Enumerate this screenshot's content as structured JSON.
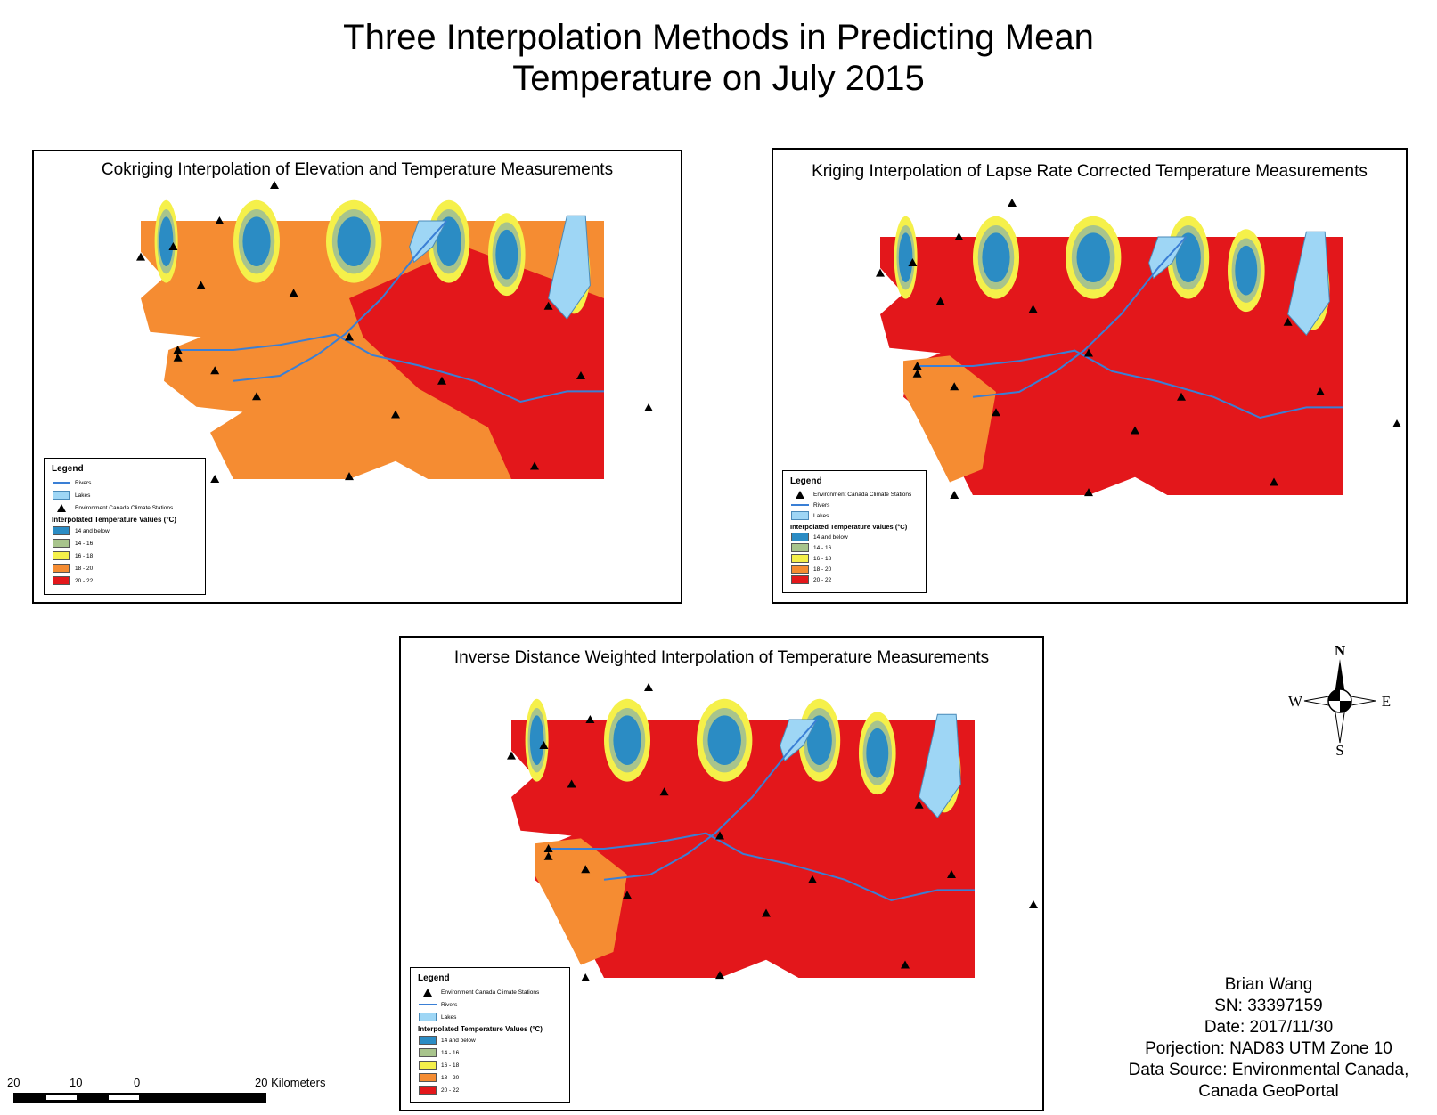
{
  "title": {
    "line1": "Three Interpolation Methods in Predicting Mean",
    "line2": "Temperature on July 2015"
  },
  "colors": {
    "below14": "#2b8cc4",
    "c14_16": "#a8c48c",
    "c16_18": "#f5f04a",
    "c18_20": "#f58c32",
    "c20_22": "#e3171b",
    "river": "#3a7fd5",
    "lake": "#9ed6f5"
  },
  "panels": [
    {
      "title": "Cokriging Interpolation of Elevation and Temperature Measurements",
      "dominant": "c18_20",
      "legend": {
        "title": "Legend",
        "rivers": "Rivers",
        "lakes": "Lakes",
        "stations": "Environment Canada Climate Stations",
        "subtitle": "Interpolated Temperature Values (°C)",
        "classes": [
          "14 and below",
          "14 - 16",
          "16 - 18",
          "18 - 20",
          "20 - 22"
        ]
      }
    },
    {
      "title": "Kriging Interpolation of Lapse Rate Corrected Temperature Measurements",
      "dominant": "c20_22",
      "legend": {
        "title": "Legend",
        "stations": "Environment Canada Climate Stations",
        "rivers": "Rivers",
        "lakes": "Lakes",
        "subtitle": "Interpolated Temperature Values (°C)",
        "classes": [
          "14 and below",
          "14 - 16",
          "16 - 18",
          "18 - 20",
          "20 - 22"
        ]
      }
    },
    {
      "title": "Inverse Distance Weighted Interpolation of Temperature Measurements",
      "dominant": "c20_22",
      "legend": {
        "title": "Legend",
        "stations": "Environment Canada Climate Stations",
        "rivers": "Rivers",
        "lakes": "Lakes",
        "subtitle": "Interpolated Temperature Values (°C)",
        "classes": [
          "14 and below",
          "14 - 16",
          "16 - 18",
          "18 - 20",
          "20 - 22"
        ]
      }
    }
  ],
  "compass": {
    "n": "N",
    "s": "S",
    "e": "E",
    "w": "W"
  },
  "credits": {
    "line1": "Brian Wang",
    "line2": "SN: 33397159",
    "line3": "Date: 2017/11/30",
    "line4": "Porjection: NAD83 UTM Zone 10",
    "line5": "Data Source: Environmental Canada,",
    "line6": "Canada GeoPortal"
  },
  "scale": {
    "labels": [
      "20",
      "10",
      "0",
      "20 Kilometers"
    ]
  }
}
